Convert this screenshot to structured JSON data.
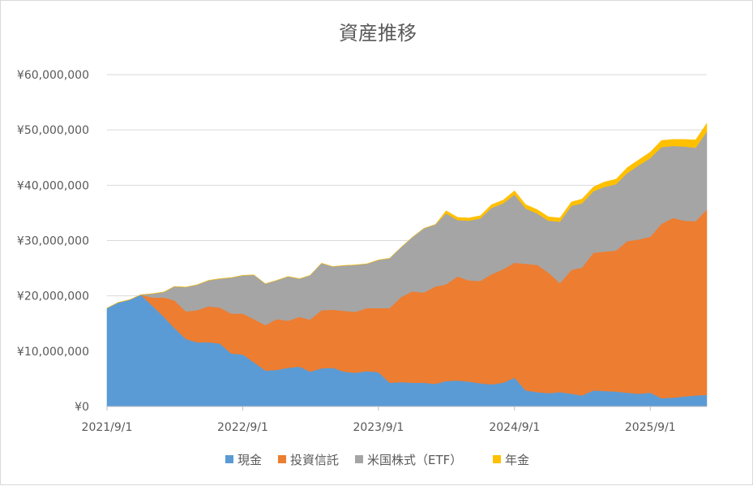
{
  "chart_data": {
    "type": "area",
    "stacked": true,
    "title": "資産推移",
    "xlabel": "",
    "ylabel": "",
    "x_ticks": [
      "2021/9/1",
      "2022/9/1",
      "2023/9/1",
      "2024/9/1",
      "2025/9/1"
    ],
    "y_ticks": [
      "¥0",
      "¥10,000,000",
      "¥20,000,000",
      "¥30,000,000",
      "¥40,000,000",
      "¥50,000,000",
      "¥60,000,000"
    ],
    "ylim": [
      0,
      60000000
    ],
    "xlim": [
      "2021-09-01",
      "2026-01-31"
    ],
    "grid": "horizontal",
    "legend_position": "bottom",
    "x": [
      "2021-09-01",
      "2021-10-01",
      "2021-11-01",
      "2021-12-01",
      "2022-01-01",
      "2022-02-01",
      "2022-03-01",
      "2022-04-01",
      "2022-05-01",
      "2022-06-01",
      "2022-07-01",
      "2022-08-01",
      "2022-09-01",
      "2022-10-01",
      "2022-11-01",
      "2022-12-01",
      "2023-01-01",
      "2023-02-01",
      "2023-03-01",
      "2023-04-01",
      "2023-05-01",
      "2023-06-01",
      "2023-07-01",
      "2023-08-01",
      "2023-09-01",
      "2023-10-01",
      "2023-11-01",
      "2023-12-01",
      "2024-01-01",
      "2024-02-01",
      "2024-03-01",
      "2024-04-01",
      "2024-05-01",
      "2024-06-01",
      "2024-07-01",
      "2024-08-01",
      "2024-09-01",
      "2024-10-01",
      "2024-11-01",
      "2024-12-01",
      "2025-01-01",
      "2025-02-01",
      "2025-03-01",
      "2025-04-01",
      "2025-05-01",
      "2025-06-01",
      "2025-07-01",
      "2025-08-01",
      "2025-09-01",
      "2025-10-01",
      "2025-11-01",
      "2025-12-01",
      "2026-01-01",
      "2026-01-31"
    ],
    "series": [
      {
        "name": "現金",
        "color": "#5b9bd5",
        "values": [
          17800000,
          18800000,
          19300000,
          20200000,
          18200000,
          16200000,
          14200000,
          12200000,
          11600000,
          11600000,
          11400000,
          9600000,
          9400000,
          8000000,
          6500000,
          6600000,
          7000000,
          7200000,
          6300000,
          6900000,
          7000000,
          6300000,
          6100000,
          6400000,
          6200000,
          4300000,
          4400000,
          4300000,
          4300000,
          4100000,
          4600000,
          4700000,
          4500000,
          4200000,
          4000000,
          4300000,
          5200000,
          2900000,
          2600000,
          2400000,
          2600000,
          2300000,
          2000000,
          2900000,
          2800000,
          2700000,
          2500000,
          2300000,
          2500000,
          1500000,
          1600000,
          1800000,
          2000000,
          2100000
        ]
      },
      {
        "name": "投資信託",
        "color": "#ed7d31",
        "values": [
          0,
          0,
          0,
          0,
          1500000,
          3500000,
          5000000,
          5000000,
          5800000,
          6500000,
          6500000,
          7200000,
          7400000,
          7800000,
          8200000,
          9200000,
          8500000,
          9000000,
          9400000,
          10500000,
          10500000,
          11000000,
          11000000,
          11400000,
          11600000,
          13500000,
          15400000,
          16500000,
          16300000,
          17600000,
          17500000,
          18800000,
          18300000,
          18500000,
          19900000,
          20500000,
          20800000,
          22900000,
          23000000,
          21800000,
          19700000,
          22400000,
          23100000,
          24900000,
          25200000,
          25500000,
          27400000,
          27900000,
          28200000,
          31500000,
          32500000,
          31800000,
          31500000,
          33500000
        ]
      },
      {
        "name": "米国株式（ETF）",
        "color": "#a5a5a5",
        "values": [
          0,
          0,
          0,
          0,
          700000,
          1000000,
          2500000,
          4400000,
          4600000,
          4700000,
          5200000,
          6500000,
          6900000,
          8000000,
          7500000,
          7000000,
          8000000,
          6900000,
          8000000,
          8500000,
          7800000,
          8200000,
          8500000,
          8000000,
          8700000,
          9000000,
          9000000,
          9800000,
          11600000,
          11200000,
          12800000,
          10200000,
          10800000,
          11300000,
          12000000,
          11900000,
          12300000,
          10000000,
          9300000,
          9400000,
          11100000,
          11600000,
          11600000,
          11100000,
          11700000,
          12000000,
          12300000,
          13400000,
          14200000,
          13900000,
          13000000,
          13400000,
          13300000,
          14100000
        ]
      },
      {
        "name": "年金",
        "color": "#ffc000",
        "values": [
          0,
          0,
          0,
          0,
          0,
          0,
          0,
          0,
          0,
          0,
          0,
          0,
          0,
          0,
          0,
          0,
          0,
          0,
          0,
          0,
          0,
          0,
          0,
          0,
          0,
          0,
          0,
          0,
          0,
          0,
          500000,
          500000,
          500000,
          500000,
          600000,
          600000,
          700000,
          700000,
          700000,
          700000,
          700000,
          700000,
          800000,
          800000,
          900000,
          900000,
          1000000,
          1000000,
          1100000,
          1200000,
          1200000,
          1300000,
          1400000,
          1500000
        ]
      }
    ]
  }
}
